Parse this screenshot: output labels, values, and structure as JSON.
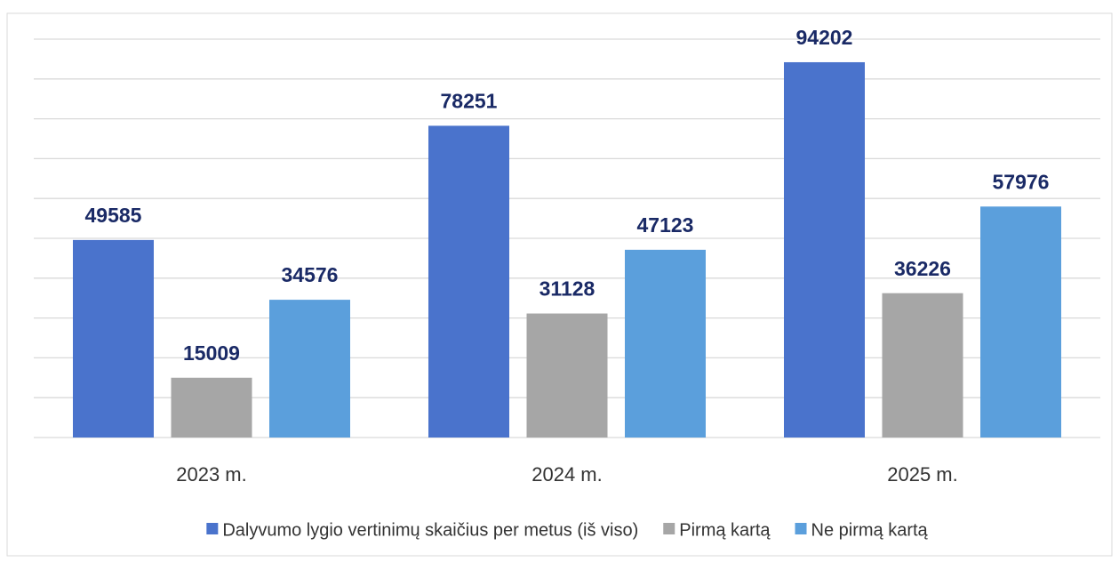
{
  "chart_data": {
    "type": "bar",
    "categories": [
      "2023 m.",
      "2024 m.",
      "2025 m."
    ],
    "series": [
      {
        "name": "Dalyvumo lygio vertinimų skaičius per metus (iš viso)",
        "color": "#4a73cc",
        "values": [
          49585,
          78251,
          94202
        ]
      },
      {
        "name": "Pirmą kartą",
        "color": "#a6a6a6",
        "values": [
          15009,
          31128,
          36226
        ]
      },
      {
        "name": "Ne pirmą kartą",
        "color": "#5b9fdc",
        "values": [
          34576,
          47123,
          57976
        ]
      }
    ],
    "ylim": [
      0,
      100000
    ],
    "yticks": [
      0,
      10000,
      20000,
      30000,
      40000,
      50000,
      60000,
      70000,
      80000,
      90000,
      100000
    ],
    "grid": true,
    "legend": "bottom"
  }
}
